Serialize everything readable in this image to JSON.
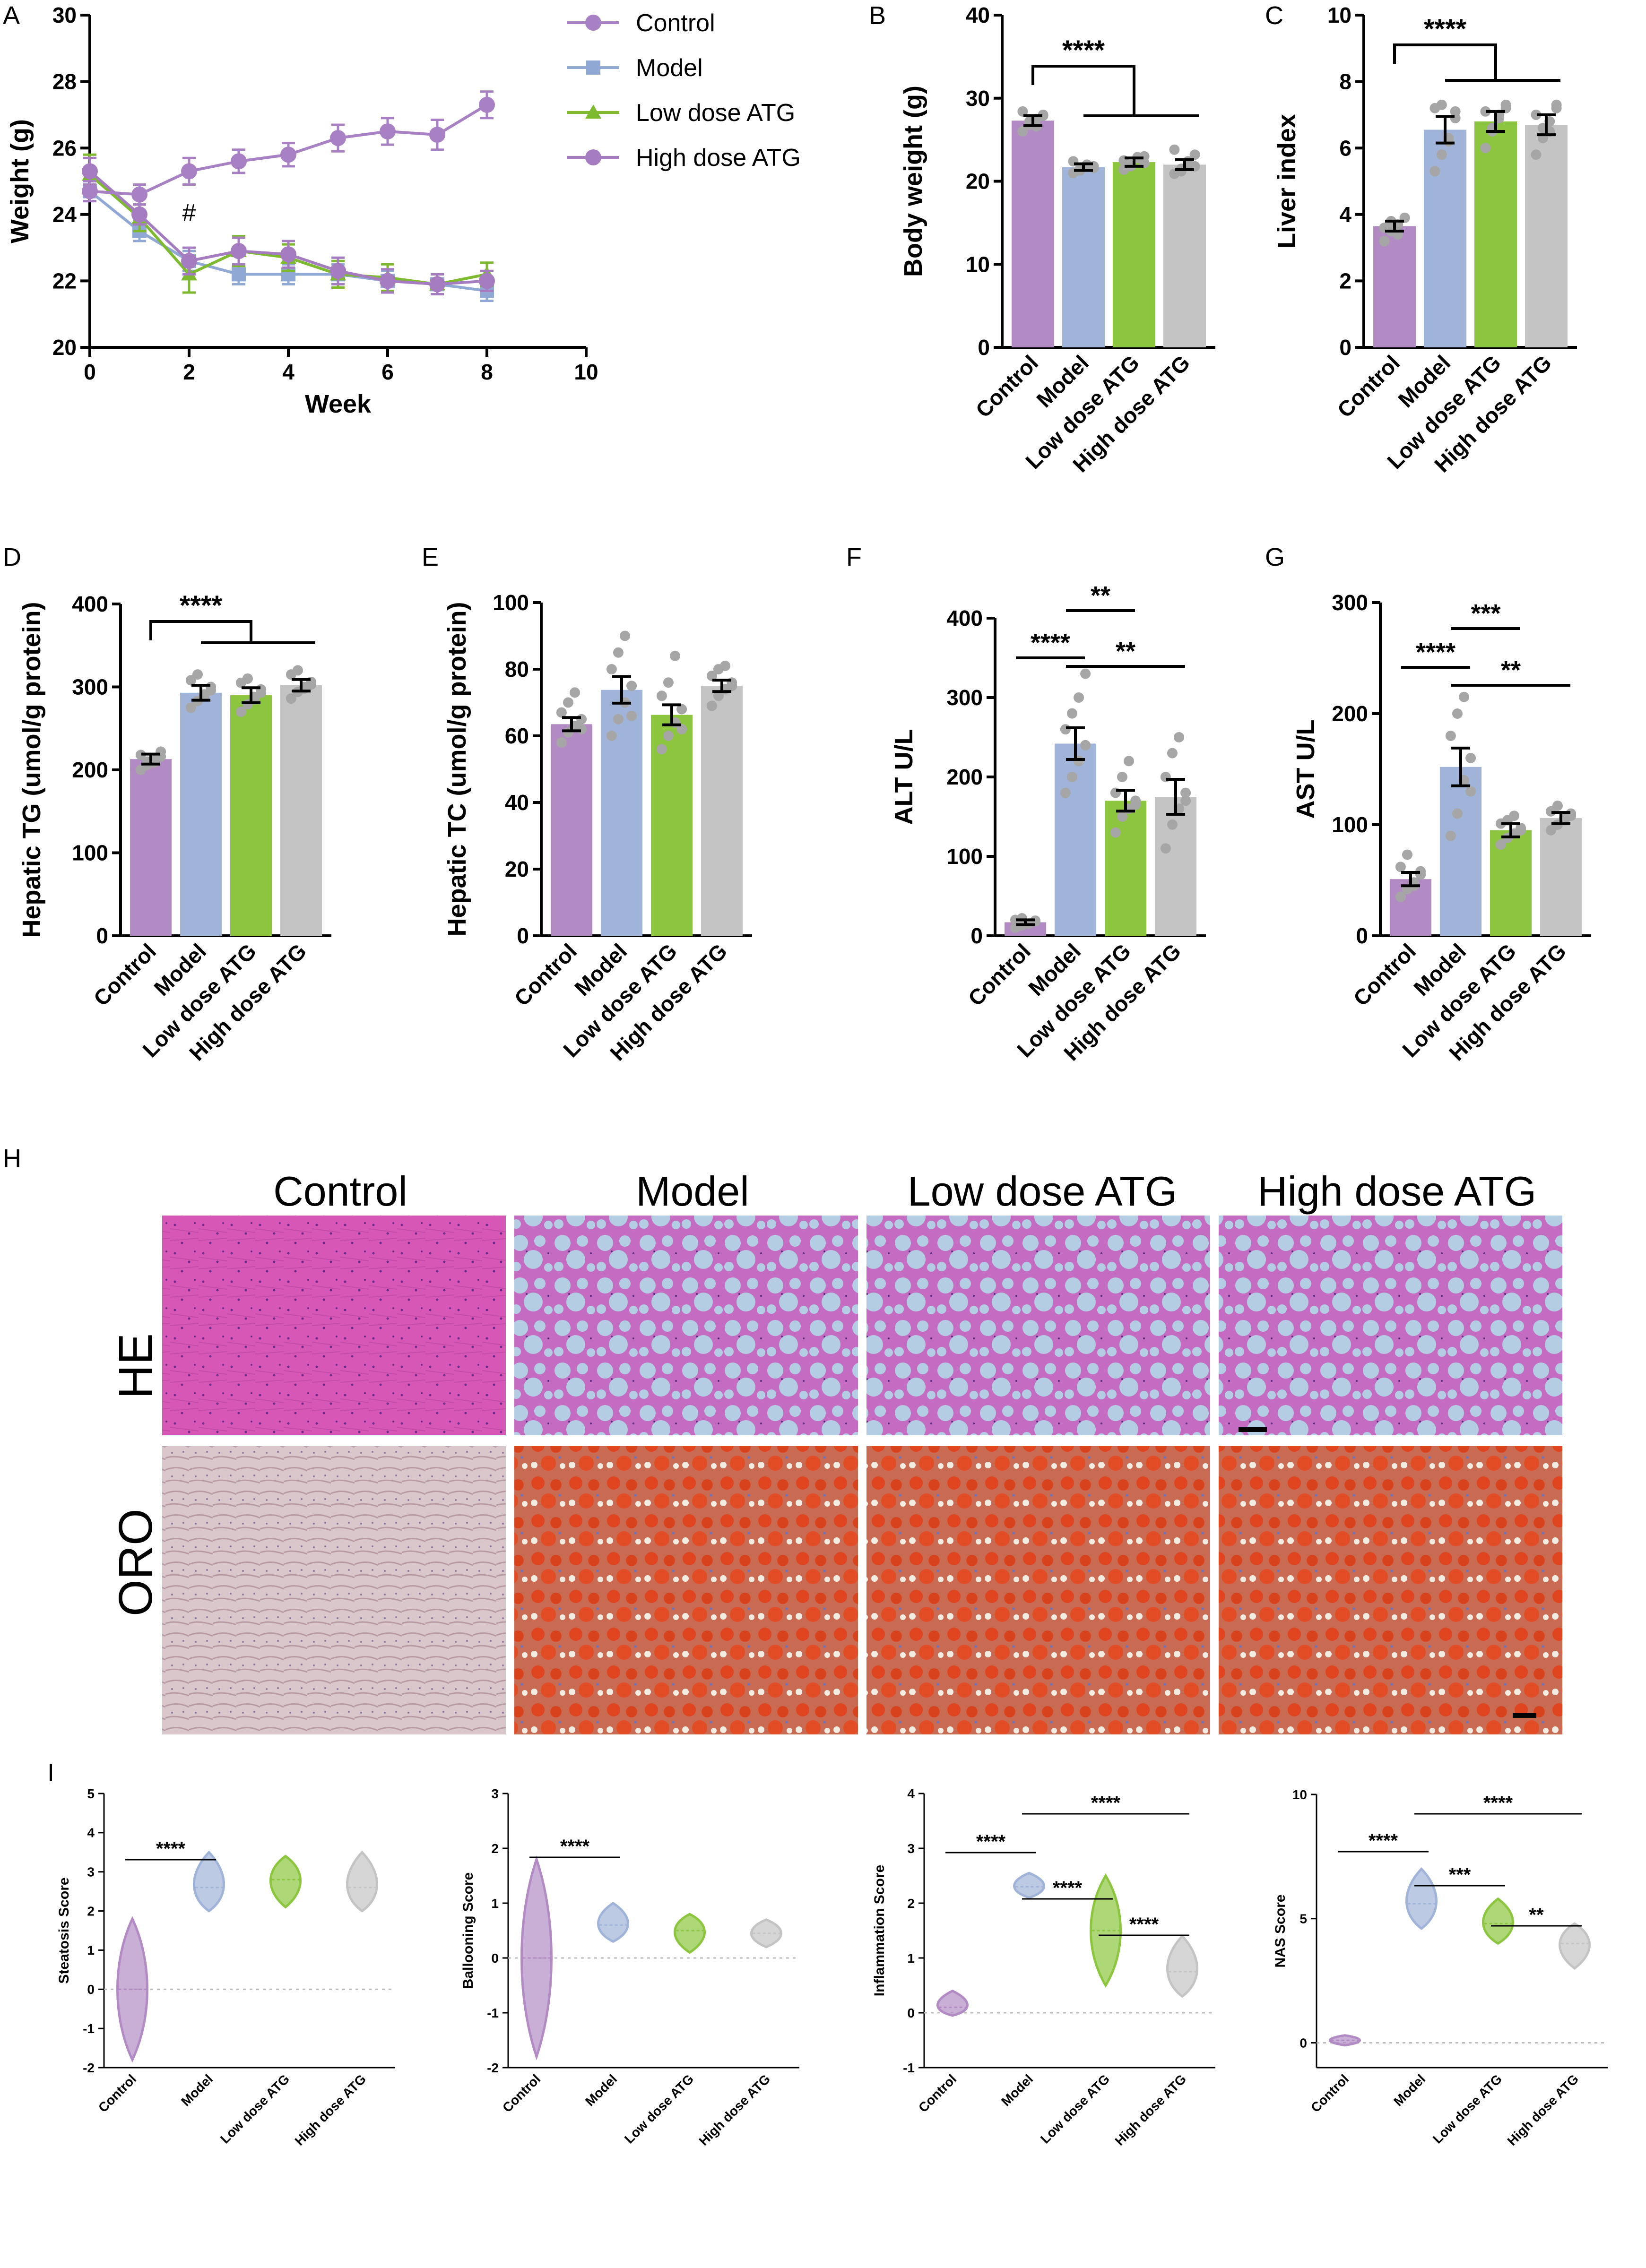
{
  "groups": [
    "Control",
    "Model",
    "Low dose ATG",
    "High dose ATG"
  ],
  "colors": {
    "Control": "#b28bc4",
    "Model": "#9fb4d8",
    "Low dose ATG": "#8cc63f",
    "High dose ATG": "#c4c4c4",
    "ControlLine": "#a880c4",
    "ModelLine": "#8fa8d4",
    "LowLine": "#7dba2f",
    "HighLine": "#a57cc0"
  },
  "panel_labels": {
    "A": "A",
    "B": "B",
    "C": "C",
    "D": "D",
    "E": "E",
    "F": "F",
    "G": "G",
    "H": "H",
    "I": "I"
  },
  "histology": {
    "columns": [
      "Control",
      "Model",
      "Low dose ATG",
      "High dose ATG"
    ],
    "rows": [
      "HE",
      "ORO"
    ]
  },
  "chart_data": [
    {
      "id": "A",
      "type": "line",
      "xlabel": "Week",
      "ylabel": "Weight (g)",
      "xlim": [
        0,
        10
      ],
      "ylim": [
        20,
        30
      ],
      "xticks": [
        0,
        2,
        4,
        6,
        8,
        10
      ],
      "yticks": [
        20,
        22,
        24,
        26,
        28,
        30
      ],
      "x": [
        0,
        1,
        2,
        3,
        4,
        5,
        6,
        7,
        8
      ],
      "annotation": "#",
      "series": [
        {
          "name": "Control",
          "marker": "circle",
          "values": [
            24.7,
            24.6,
            25.3,
            25.6,
            25.8,
            26.3,
            26.5,
            26.4,
            27.3
          ],
          "err": [
            0.3,
            0.3,
            0.4,
            0.35,
            0.35,
            0.4,
            0.4,
            0.45,
            0.4
          ]
        },
        {
          "name": "Model",
          "marker": "square",
          "values": [
            24.7,
            23.5,
            22.6,
            22.2,
            22.2,
            22.2,
            22.0,
            21.9,
            21.7
          ],
          "err": [
            0.3,
            0.3,
            0.3,
            0.3,
            0.3,
            0.3,
            0.3,
            0.3,
            0.3
          ]
        },
        {
          "name": "Low dose ATG",
          "marker": "triangle",
          "values": [
            25.2,
            23.9,
            22.2,
            22.9,
            22.7,
            22.2,
            22.1,
            21.9,
            22.2
          ],
          "err": [
            0.6,
            0.4,
            0.55,
            0.45,
            0.4,
            0.4,
            0.4,
            0.3,
            0.35
          ]
        },
        {
          "name": "High dose ATG",
          "marker": "circle",
          "values": [
            25.3,
            24.0,
            22.6,
            22.9,
            22.8,
            22.3,
            22.0,
            21.9,
            22.0
          ],
          "err": [
            0.4,
            0.3,
            0.4,
            0.4,
            0.4,
            0.4,
            0.35,
            0.3,
            0.3
          ]
        }
      ]
    },
    {
      "id": "B",
      "type": "bar",
      "ylabel": "Body weight (g)",
      "ylim": [
        0,
        40
      ],
      "yticks": [
        0,
        10,
        20,
        30,
        40
      ],
      "categories": [
        "Control",
        "Model",
        "Low dose ATG",
        "High dose ATG"
      ],
      "values": [
        27.3,
        21.7,
        22.3,
        22.0
      ],
      "err": [
        0.6,
        0.4,
        0.5,
        0.6
      ],
      "points": [
        [
          26.0,
          26.8,
          27.5,
          28.0,
          28.4,
          27.2,
          26.6,
          27.9
        ],
        [
          21.0,
          21.5,
          22.0,
          21.8,
          22.4,
          21.3,
          21.9,
          21.6
        ],
        [
          21.4,
          22.0,
          22.8,
          23.0,
          22.5,
          21.8,
          22.9,
          22.2
        ],
        [
          20.9,
          21.5,
          22.4,
          23.2,
          23.8,
          21.2,
          22.0,
          21.8
        ]
      ],
      "sig": [
        {
          "text": "****",
          "from": 0,
          "to": [
            1,
            3
          ]
        }
      ]
    },
    {
      "id": "C",
      "type": "bar",
      "ylabel": "Liver index",
      "ylim": [
        0,
        10
      ],
      "yticks": [
        0,
        2,
        4,
        6,
        8,
        10
      ],
      "categories": [
        "Control",
        "Model",
        "Low dose ATG",
        "High dose ATG"
      ],
      "values": [
        3.65,
        6.55,
        6.8,
        6.7
      ],
      "err": [
        0.15,
        0.4,
        0.3,
        0.3
      ],
      "points": [
        [
          3.2,
          3.5,
          3.7,
          3.9,
          3.6,
          3.8,
          3.4,
          3.9
        ],
        [
          5.3,
          5.8,
          6.3,
          6.9,
          7.2,
          7.3,
          6.2,
          7.1
        ],
        [
          6.0,
          6.5,
          7.0,
          7.2,
          7.1,
          6.6,
          6.9,
          7.3
        ],
        [
          5.8,
          6.3,
          6.8,
          7.3,
          7.0,
          6.6,
          6.5,
          7.2
        ]
      ],
      "sig": [
        {
          "text": "****",
          "from": 0,
          "to": [
            1,
            3
          ]
        }
      ]
    },
    {
      "id": "D",
      "type": "bar",
      "ylabel": "Hepatic TG (umol/g protein)",
      "ylim": [
        0,
        400
      ],
      "yticks": [
        0,
        100,
        200,
        300,
        400
      ],
      "categories": [
        "Control",
        "Model",
        "Low dose ATG",
        "High dose ATG"
      ],
      "values": [
        213,
        293,
        290,
        302
      ],
      "err": [
        6,
        9,
        9,
        7
      ],
      "points": [
        [
          200,
          206,
          214,
          222,
          218,
          210,
          209,
          216
        ],
        [
          275,
          283,
          291,
          300,
          308,
          315,
          289,
          296
        ],
        [
          270,
          279,
          288,
          297,
          305,
          310,
          285,
          293
        ],
        [
          286,
          294,
          300,
          306,
          315,
          320,
          298,
          303
        ]
      ],
      "sig": [
        {
          "text": "****",
          "from": 0,
          "to": [
            1,
            3
          ]
        }
      ]
    },
    {
      "id": "E",
      "type": "bar",
      "ylabel": "Hepatic TC (umol/g protein)",
      "ylim": [
        0,
        100
      ],
      "yticks": [
        0,
        20,
        40,
        60,
        80,
        100
      ],
      "categories": [
        "Control",
        "Model",
        "Low dose ATG",
        "High dose ATG"
      ],
      "values": [
        63.5,
        73.8,
        66.3,
        75.0
      ],
      "err": [
        2,
        4,
        3,
        1.7
      ],
      "points": [
        [
          58,
          61,
          63,
          65,
          67,
          70,
          73,
          62
        ],
        [
          60,
          65,
          70,
          75,
          80,
          85,
          90,
          66
        ],
        [
          56,
          60,
          64,
          68,
          72,
          76,
          84,
          62
        ],
        [
          69,
          72,
          74,
          76,
          78,
          80,
          81,
          75
        ]
      ],
      "sig": []
    },
    {
      "id": "F",
      "type": "bar",
      "ylabel": "ALT U/L",
      "ylim": [
        0,
        400
      ],
      "yticks": [
        0,
        100,
        200,
        300,
        400
      ],
      "categories": [
        "Control",
        "Model",
        "Low dose ATG",
        "High dose ATG"
      ],
      "values": [
        17,
        242,
        170,
        175
      ],
      "err": [
        3,
        20,
        13,
        22
      ],
      "points": [
        [
          10,
          13,
          15,
          18,
          20,
          22,
          15,
          19
        ],
        [
          180,
          200,
          220,
          240,
          260,
          280,
          300,
          330
        ],
        [
          130,
          150,
          160,
          170,
          180,
          200,
          220,
          165
        ],
        [
          110,
          140,
          160,
          180,
          200,
          230,
          250,
          170
        ]
      ],
      "sig": [
        {
          "text": "****",
          "pair": [
            0,
            1
          ]
        },
        {
          "text": "**",
          "pair": [
            1,
            2
          ]
        },
        {
          "text": "**",
          "pair": [
            1,
            3
          ]
        }
      ]
    },
    {
      "id": "G",
      "type": "bar",
      "ylabel": "AST U/L",
      "ylim": [
        0,
        300
      ],
      "yticks": [
        0,
        100,
        200,
        300
      ],
      "categories": [
        "Control",
        "Model",
        "Low dose ATG",
        "High dose ATG"
      ],
      "values": [
        51,
        152,
        95,
        106
      ],
      "err": [
        6,
        17,
        6,
        5
      ],
      "points": [
        [
          35,
          42,
          48,
          55,
          62,
          73,
          45,
          58
        ],
        [
          90,
          110,
          140,
          160,
          180,
          200,
          215,
          130
        ],
        [
          82,
          88,
          92,
          97,
          101,
          104,
          108,
          95
        ],
        [
          95,
          100,
          104,
          108,
          112,
          117,
          106,
          110
        ]
      ],
      "sig": [
        {
          "text": "****",
          "pair": [
            0,
            1
          ]
        },
        {
          "text": "***",
          "pair": [
            1,
            2
          ]
        },
        {
          "text": "**",
          "pair": [
            1,
            3
          ]
        }
      ]
    },
    {
      "id": "I1",
      "type": "violin",
      "ylabel": "Steatosis Score",
      "ylim": [
        -2,
        5
      ],
      "yticks": [
        -2,
        -1,
        0,
        1,
        2,
        3,
        4,
        5
      ],
      "categories": [
        "Control",
        "Model",
        "Low dose ATG",
        "High dose ATG"
      ],
      "ranges": [
        [
          -1.8,
          1.8
        ],
        [
          2.0,
          3.5
        ],
        [
          2.1,
          3.4
        ],
        [
          2.0,
          3.5
        ]
      ],
      "medians": [
        0,
        2.6,
        2.8,
        2.6
      ],
      "sig": [
        {
          "text": "****",
          "pair": [
            0,
            1
          ]
        }
      ]
    },
    {
      "id": "I2",
      "type": "violin",
      "ylabel": "Ballooning Score",
      "ylim": [
        -2,
        3
      ],
      "yticks": [
        -2,
        -1,
        0,
        1,
        2,
        3
      ],
      "categories": [
        "Control",
        "Model",
        "Low dose ATG",
        "High dose ATG"
      ],
      "ranges": [
        [
          -1.8,
          1.8
        ],
        [
          0.3,
          1.0
        ],
        [
          0.1,
          0.8
        ],
        [
          0.2,
          0.7
        ]
      ],
      "medians": [
        0,
        0.6,
        0.5,
        0.45
      ],
      "sig": [
        {
          "text": "****",
          "pair": [
            0,
            1
          ]
        }
      ]
    },
    {
      "id": "I3",
      "type": "violin",
      "ylabel": "Inflammation Score",
      "ylim": [
        -1,
        4
      ],
      "yticks": [
        -1,
        0,
        1,
        2,
        3,
        4
      ],
      "categories": [
        "Control",
        "Model",
        "Low dose ATG",
        "High dose ATG"
      ],
      "ranges": [
        [
          -0.05,
          0.4
        ],
        [
          2.1,
          2.55
        ],
        [
          0.5,
          2.5
        ],
        [
          0.3,
          1.4
        ]
      ],
      "medians": [
        0.1,
        2.3,
        1.5,
        0.75
      ],
      "sig": [
        {
          "text": "****",
          "pair": [
            0,
            1
          ]
        },
        {
          "text": "****",
          "pair": [
            1,
            2
          ]
        },
        {
          "text": "****",
          "pair": [
            2,
            3
          ]
        },
        {
          "text": "****",
          "pair": [
            1,
            3
          ]
        }
      ]
    },
    {
      "id": "I4",
      "type": "violin",
      "ylabel": "NAS Score",
      "ylim": [
        -1,
        10
      ],
      "yticks": [
        0,
        5,
        10
      ],
      "categories": [
        "Control",
        "Model",
        "Low dose ATG",
        "High dose ATG"
      ],
      "ranges": [
        [
          -0.1,
          0.3
        ],
        [
          4.6,
          7.0
        ],
        [
          4.0,
          5.8
        ],
        [
          3.0,
          4.8
        ]
      ],
      "medians": [
        0.1,
        5.6,
        4.8,
        4.0
      ],
      "sig": [
        {
          "text": "****",
          "pair": [
            0,
            1
          ]
        },
        {
          "text": "***",
          "pair": [
            1,
            2
          ]
        },
        {
          "text": "**",
          "pair": [
            2,
            3
          ]
        },
        {
          "text": "****",
          "pair": [
            1,
            3
          ]
        }
      ]
    }
  ]
}
